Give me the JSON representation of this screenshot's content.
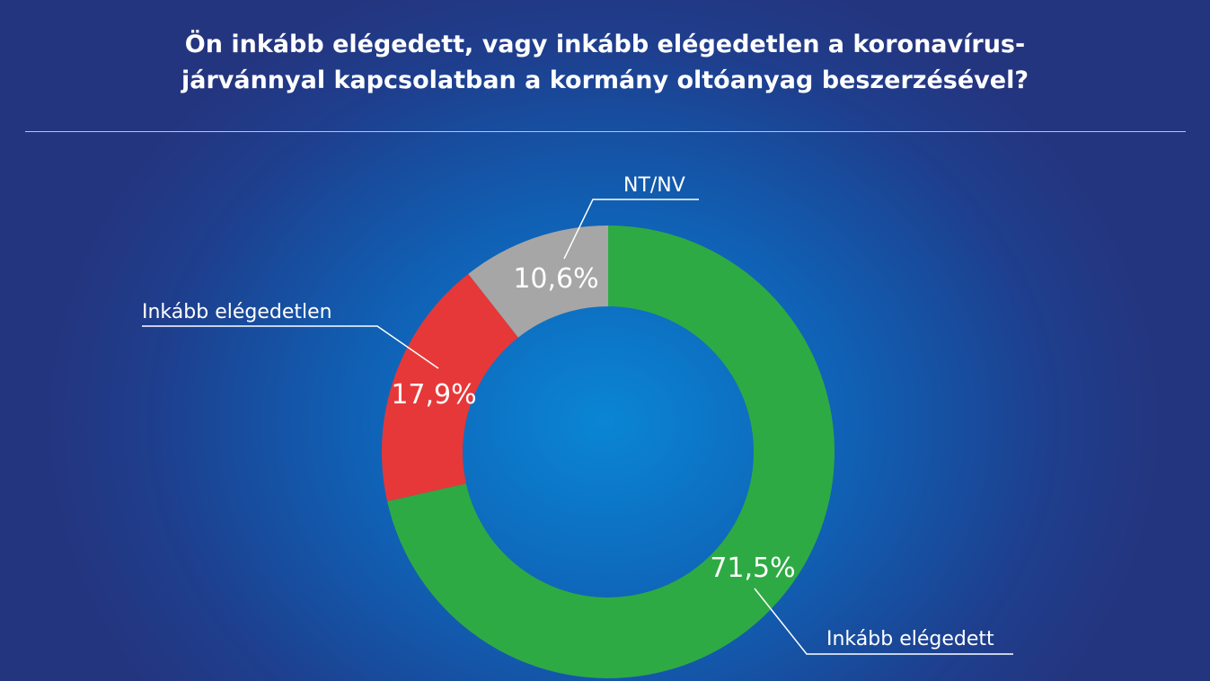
{
  "chart_data": {
    "type": "pie",
    "title_lines": [
      "Ön inkább elégedett, vagy inkább elégedetlen a koronavírus-",
      "járvánnyal kapcsolatban a kormány oltóanyag beszerzésével?"
    ],
    "slices": [
      {
        "label": "Inkább elégedett",
        "value": 71.5,
        "value_label": "71,5%",
        "color": "#2eaa44"
      },
      {
        "label": "Inkább elégedetlen",
        "value": 17.9,
        "value_label": "17,9%",
        "color": "#e63838"
      },
      {
        "label": "NT/NV",
        "value": 10.6,
        "value_label": "10,6%",
        "color": "#a6a6a6"
      }
    ],
    "donut": true
  }
}
